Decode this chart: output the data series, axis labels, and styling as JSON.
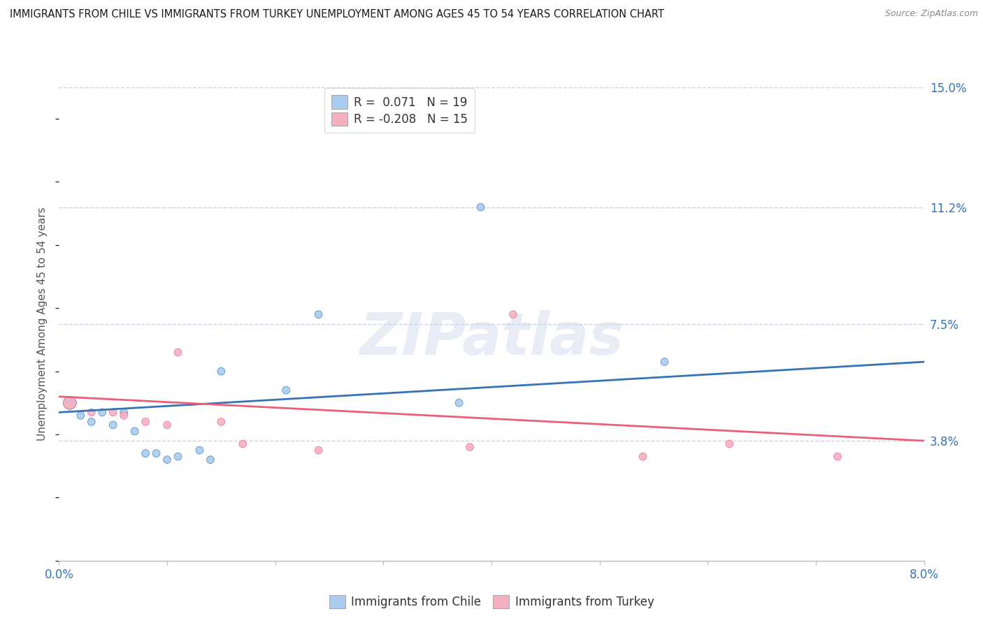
{
  "title": "IMMIGRANTS FROM CHILE VS IMMIGRANTS FROM TURKEY UNEMPLOYMENT AMONG AGES 45 TO 54 YEARS CORRELATION CHART",
  "source": "Source: ZipAtlas.com",
  "ylabel": "Unemployment Among Ages 45 to 54 years",
  "xlim": [
    0.0,
    0.08
  ],
  "ylim": [
    0.0,
    0.15
  ],
  "xticks": [
    0.0,
    0.01,
    0.02,
    0.03,
    0.04,
    0.05,
    0.06,
    0.07,
    0.08
  ],
  "ytick_positions": [
    0.038,
    0.075,
    0.112,
    0.15
  ],
  "ytick_labels": [
    "3.8%",
    "7.5%",
    "11.2%",
    "15.0%"
  ],
  "chile_R": 0.071,
  "chile_N": 19,
  "turkey_R": -0.208,
  "turkey_N": 15,
  "chile_color": "#aaccf0",
  "turkey_color": "#f5b0c0",
  "chile_line_color": "#3474b5",
  "turkey_line_color": "#e8607a",
  "background_color": "#ffffff",
  "grid_color": "#c8d4e8",
  "watermark": "ZIPatlas",
  "chile_x": [
    0.001,
    0.002,
    0.003,
    0.004,
    0.005,
    0.006,
    0.007,
    0.008,
    0.009,
    0.01,
    0.011,
    0.013,
    0.014,
    0.015,
    0.021,
    0.024,
    0.037,
    0.039,
    0.056
  ],
  "chile_y": [
    0.05,
    0.046,
    0.044,
    0.047,
    0.043,
    0.047,
    0.041,
    0.034,
    0.034,
    0.032,
    0.033,
    0.035,
    0.032,
    0.06,
    0.054,
    0.078,
    0.05,
    0.112,
    0.063
  ],
  "turkey_x": [
    0.001,
    0.003,
    0.005,
    0.006,
    0.008,
    0.01,
    0.011,
    0.015,
    0.017,
    0.024,
    0.038,
    0.042,
    0.054,
    0.062,
    0.072
  ],
  "turkey_y": [
    0.05,
    0.047,
    0.047,
    0.046,
    0.044,
    0.043,
    0.066,
    0.044,
    0.037,
    0.035,
    0.036,
    0.078,
    0.033,
    0.037,
    0.033
  ],
  "chile_sizes": [
    180,
    60,
    60,
    60,
    60,
    60,
    60,
    60,
    60,
    60,
    60,
    60,
    60,
    60,
    60,
    60,
    60,
    60,
    60
  ],
  "turkey_sizes": [
    180,
    60,
    60,
    60,
    60,
    60,
    60,
    60,
    60,
    60,
    60,
    60,
    60,
    60,
    60
  ],
  "chile_line_start_y": 0.047,
  "chile_line_end_y": 0.063,
  "turkey_line_start_y": 0.052,
  "turkey_line_end_y": 0.038
}
